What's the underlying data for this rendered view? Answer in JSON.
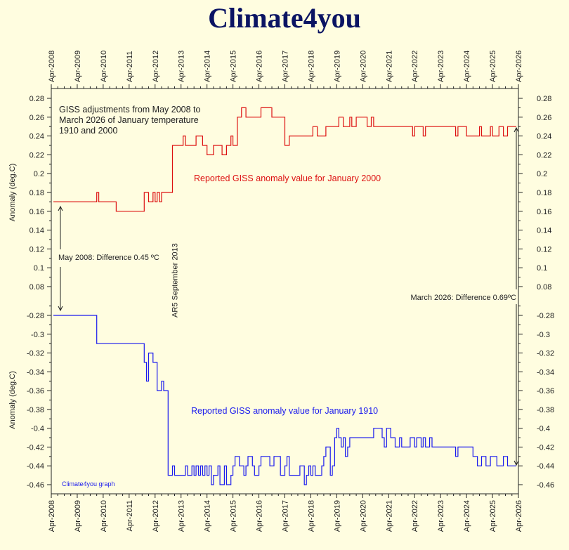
{
  "page": {
    "site_title": "Climate4you"
  },
  "chart_data": {
    "type": "line",
    "xlabel": "",
    "x_ticks": [
      "Apr-2008",
      "Apr-2009",
      "Apr-2010",
      "Apr-2011",
      "Apr-2012",
      "Apr-2013",
      "Apr-2014",
      "Apr-2015",
      "Apr-2016",
      "Apr-2017",
      "Apr-2018",
      "Apr-2019",
      "Apr-2020",
      "Apr-2021",
      "Apr-2022",
      "Apr-2023",
      "Apr-2024",
      "Apr-2025",
      "Apr-2026"
    ],
    "x_range": [
      2008.25,
      2026.25
    ],
    "panels": [
      {
        "name": "upper",
        "ylabel": "Anomaly (deg.C)",
        "ylim": [
          0.08,
          0.28
        ],
        "y_ticks": [
          "0.08",
          "0.1",
          "0.12",
          "0.14",
          "0.16",
          "0.18",
          "0.2",
          "0.22",
          "0.24",
          "0.26",
          "0.28"
        ],
        "series": [
          {
            "name": "Reported GISS anomaly value for January 2000",
            "color": "#dd1111",
            "x": [
              2008.33,
              2010.0,
              2010.08,
              2010.75,
              2011.83,
              2012.0,
              2012.17,
              2012.25,
              2012.33,
              2012.42,
              2012.5,
              2012.92,
              2013.33,
              2013.42,
              2013.83,
              2014.08,
              2014.25,
              2014.5,
              2014.83,
              2015.0,
              2015.17,
              2015.25,
              2015.42,
              2015.58,
              2015.75,
              2016.0,
              2016.17,
              2016.33,
              2016.75,
              2016.83,
              2017.0,
              2017.25,
              2017.42,
              2017.5,
              2018.08,
              2018.17,
              2018.33,
              2018.5,
              2018.83,
              2019.17,
              2019.33,
              2019.5,
              2019.58,
              2019.75,
              2019.83,
              2020.0,
              2020.08,
              2020.17,
              2020.42,
              2020.58,
              2020.67,
              2021.0,
              2021.5,
              2022.17,
              2022.25,
              2022.58,
              2022.67,
              2023.17,
              2023.83,
              2023.92,
              2024.17,
              2024.25,
              2024.75,
              2024.83,
              2025.17,
              2025.25,
              2025.5,
              2025.67,
              2025.83,
              2026.17
            ],
            "y": [
              0.17,
              0.18,
              0.17,
              0.16,
              0.18,
              0.17,
              0.18,
              0.17,
              0.18,
              0.17,
              0.18,
              0.23,
              0.24,
              0.23,
              0.24,
              0.23,
              0.22,
              0.23,
              0.22,
              0.23,
              0.24,
              0.23,
              0.26,
              0.27,
              0.26,
              0.26,
              0.26,
              0.27,
              0.26,
              0.26,
              0.26,
              0.23,
              0.24,
              0.24,
              0.24,
              0.24,
              0.25,
              0.24,
              0.25,
              0.25,
              0.26,
              0.25,
              0.25,
              0.26,
              0.25,
              0.26,
              0.26,
              0.26,
              0.25,
              0.26,
              0.25,
              0.25,
              0.25,
              0.24,
              0.25,
              0.24,
              0.25,
              0.25,
              0.24,
              0.25,
              0.25,
              0.24,
              0.25,
              0.24,
              0.25,
              0.24,
              0.25,
              0.24,
              0.25,
              0.25
            ]
          }
        ]
      },
      {
        "name": "lower",
        "ylabel": "Anomaly (deg.C)",
        "ylim": [
          -0.46,
          -0.28
        ],
        "y_ticks": [
          "-0.28",
          "-0.3",
          "-0.32",
          "-0.34",
          "-0.36",
          "-0.38",
          "-0.4",
          "-0.42",
          "-0.44",
          "-0.46"
        ],
        "series": [
          {
            "name": "Reported GISS anomaly value for January 1910",
            "color": "#1a1aee",
            "x": [
              2008.33,
              2010.0,
              2011.83,
              2011.92,
              2012.0,
              2012.17,
              2012.33,
              2012.5,
              2012.58,
              2012.75,
              2012.92,
              2013.0,
              2013.08,
              2013.42,
              2013.5,
              2013.67,
              2013.75,
              2013.83,
              2013.92,
              2014.0,
              2014.08,
              2014.17,
              2014.25,
              2014.33,
              2014.42,
              2014.5,
              2014.67,
              2014.75,
              2014.92,
              2015.0,
              2015.17,
              2015.25,
              2015.33,
              2015.5,
              2015.67,
              2015.75,
              2015.83,
              2016.0,
              2016.08,
              2016.25,
              2016.33,
              2016.67,
              2016.83,
              2017.08,
              2017.25,
              2017.33,
              2017.42,
              2017.67,
              2017.83,
              2018.0,
              2018.08,
              2018.17,
              2018.25,
              2018.33,
              2018.42,
              2018.67,
              2018.75,
              2018.83,
              2019.0,
              2019.08,
              2019.17,
              2019.25,
              2019.33,
              2019.42,
              2019.5,
              2019.58,
              2019.67,
              2019.75,
              2019.83,
              2020.0,
              2020.17,
              2020.5,
              2020.67,
              2021.0,
              2021.08,
              2021.17,
              2021.33,
              2021.42,
              2021.5,
              2021.67,
              2021.75,
              2021.83,
              2022.08,
              2022.25,
              2022.33,
              2022.5,
              2022.58,
              2022.67,
              2022.83,
              2022.92,
              2023.0,
              2023.25,
              2023.42,
              2023.5,
              2023.83,
              2023.92,
              2024.25,
              2024.5,
              2024.67,
              2024.83,
              2025.0,
              2025.17,
              2025.42,
              2025.67,
              2025.83,
              2026.17
            ],
            "y": [
              -0.28,
              -0.31,
              -0.33,
              -0.35,
              -0.32,
              -0.33,
              -0.36,
              -0.35,
              -0.36,
              -0.45,
              -0.44,
              -0.45,
              -0.45,
              -0.44,
              -0.45,
              -0.44,
              -0.45,
              -0.44,
              -0.45,
              -0.44,
              -0.45,
              -0.44,
              -0.45,
              -0.44,
              -0.46,
              -0.45,
              -0.44,
              -0.46,
              -0.44,
              -0.46,
              -0.45,
              -0.44,
              -0.43,
              -0.44,
              -0.45,
              -0.44,
              -0.43,
              -0.44,
              -0.45,
              -0.44,
              -0.43,
              -0.44,
              -0.43,
              -0.45,
              -0.44,
              -0.43,
              -0.45,
              -0.45,
              -0.44,
              -0.46,
              -0.45,
              -0.44,
              -0.45,
              -0.44,
              -0.45,
              -0.44,
              -0.43,
              -0.42,
              -0.45,
              -0.44,
              -0.41,
              -0.4,
              -0.41,
              -0.42,
              -0.41,
              -0.43,
              -0.42,
              -0.41,
              -0.41,
              -0.41,
              -0.41,
              -0.41,
              -0.4,
              -0.41,
              -0.42,
              -0.4,
              -0.41,
              -0.41,
              -0.42,
              -0.41,
              -0.42,
              -0.42,
              -0.41,
              -0.42,
              -0.41,
              -0.42,
              -0.41,
              -0.42,
              -0.41,
              -0.42,
              -0.42,
              -0.42,
              -0.42,
              -0.42,
              -0.43,
              -0.42,
              -0.42,
              -0.43,
              -0.44,
              -0.43,
              -0.44,
              -0.43,
              -0.44,
              -0.43,
              -0.44,
              -0.44
            ]
          }
        ]
      }
    ],
    "annotations": {
      "title_box": [
        "GISS adjustments from May 2008 to",
        "March 2026 of January temperature",
        "1910 and 2000"
      ],
      "upper_series_label": "Reported GISS anomaly value for January 2000",
      "lower_series_label": "Reported GISS anomaly value for January 1910",
      "diff_2008": "May 2008: Difference 0.45 ºC",
      "diff_2026": "March 2026: Difference 0.69ºC",
      "ar5_label": "AR5 September 2013",
      "ar5_x": 2013.0,
      "graph_credit": "Climate4you graph"
    }
  }
}
